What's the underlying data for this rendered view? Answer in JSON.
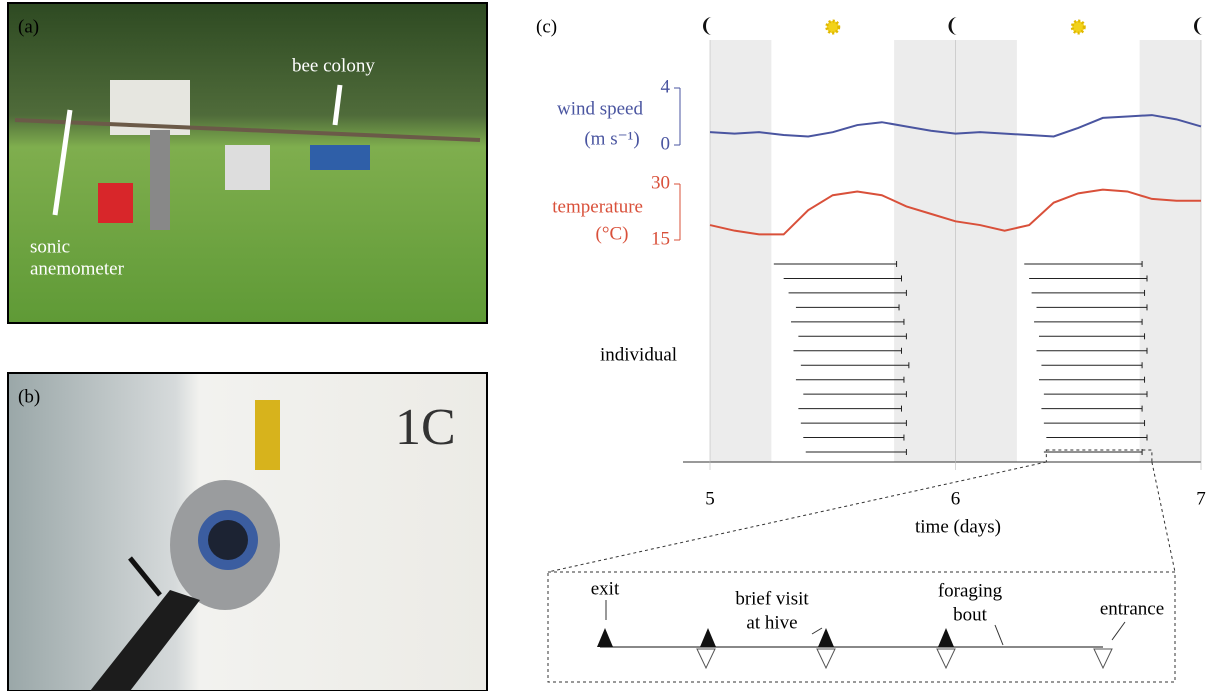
{
  "panel_a": {
    "label": "(a)",
    "annotations": [
      [
        "bee colony"
      ],
      [
        "sonic",
        "anemometer"
      ]
    ]
  },
  "panel_b": {
    "label": "(b)",
    "marking": "1C"
  },
  "chart_data": {
    "type": "line",
    "label": "(c)",
    "xlabel": "time (days)",
    "xlim": [
      4.89,
      7
    ],
    "xticks": [
      5,
      6,
      7
    ],
    "night": [
      [
        5,
        5.25
      ],
      [
        5.75,
        6.25
      ],
      [
        6.75,
        7
      ]
    ],
    "moons": [
      5,
      6,
      7
    ],
    "suns": [
      5.5,
      6.5
    ],
    "series": [
      {
        "name": "wind speed",
        "unit": "(m s⁻¹)",
        "color": "#4a55a0",
        "ylim": [
          0,
          4
        ],
        "yticks": [
          0,
          4
        ],
        "x": [
          5.0,
          5.1,
          5.2,
          5.3,
          5.4,
          5.5,
          5.6,
          5.7,
          5.8,
          5.9,
          6.0,
          6.1,
          6.2,
          6.3,
          6.4,
          6.5,
          6.6,
          6.7,
          6.8,
          6.9,
          7.0
        ],
        "values": [
          0.9,
          0.8,
          0.9,
          0.7,
          0.6,
          0.9,
          1.4,
          1.6,
          1.3,
          1.0,
          0.8,
          0.9,
          0.8,
          0.7,
          0.6,
          1.2,
          1.9,
          2.0,
          2.1,
          1.8,
          1.3
        ]
      },
      {
        "name": "temperature",
        "unit": "(°C)",
        "color": "#d9503a",
        "ylim": [
          15,
          30
        ],
        "yticks": [
          15,
          30
        ],
        "x": [
          5.0,
          5.1,
          5.2,
          5.3,
          5.4,
          5.5,
          5.6,
          5.7,
          5.8,
          5.9,
          6.0,
          6.1,
          6.2,
          6.3,
          6.4,
          6.5,
          6.6,
          6.7,
          6.8,
          6.9,
          7.0
        ],
        "values": [
          19,
          17.5,
          16.5,
          16.5,
          23,
          27,
          28,
          27,
          24,
          22,
          20,
          19,
          17.5,
          19,
          25,
          27.5,
          28.5,
          28,
          26,
          25.5,
          25.5
        ]
      }
    ],
    "raster": {
      "label": "individual",
      "bouts": [
        [
          5.26,
          5.76
        ],
        [
          5.3,
          5.78
        ],
        [
          5.32,
          5.8
        ],
        [
          5.35,
          5.77
        ],
        [
          5.33,
          5.79
        ],
        [
          5.36,
          5.8
        ],
        [
          5.34,
          5.78
        ],
        [
          5.37,
          5.81
        ],
        [
          5.35,
          5.79
        ],
        [
          5.38,
          5.8
        ],
        [
          5.36,
          5.78
        ],
        [
          5.37,
          5.8
        ],
        [
          5.38,
          5.79
        ],
        [
          5.39,
          5.8
        ],
        [
          6.28,
          6.76
        ],
        [
          6.3,
          6.78
        ],
        [
          6.31,
          6.77
        ],
        [
          6.33,
          6.78
        ],
        [
          6.32,
          6.76
        ],
        [
          6.34,
          6.77
        ],
        [
          6.33,
          6.78
        ],
        [
          6.35,
          6.76
        ],
        [
          6.34,
          6.77
        ],
        [
          6.36,
          6.78
        ],
        [
          6.35,
          6.76
        ],
        [
          6.36,
          6.77
        ],
        [
          6.37,
          6.78
        ],
        [
          6.36,
          6.76
        ]
      ]
    },
    "inset": {
      "labels": [
        [
          "exit"
        ],
        [
          "brief visit",
          "at hive"
        ],
        [
          "foraging",
          "bout"
        ],
        [
          "entrance"
        ]
      ]
    }
  }
}
